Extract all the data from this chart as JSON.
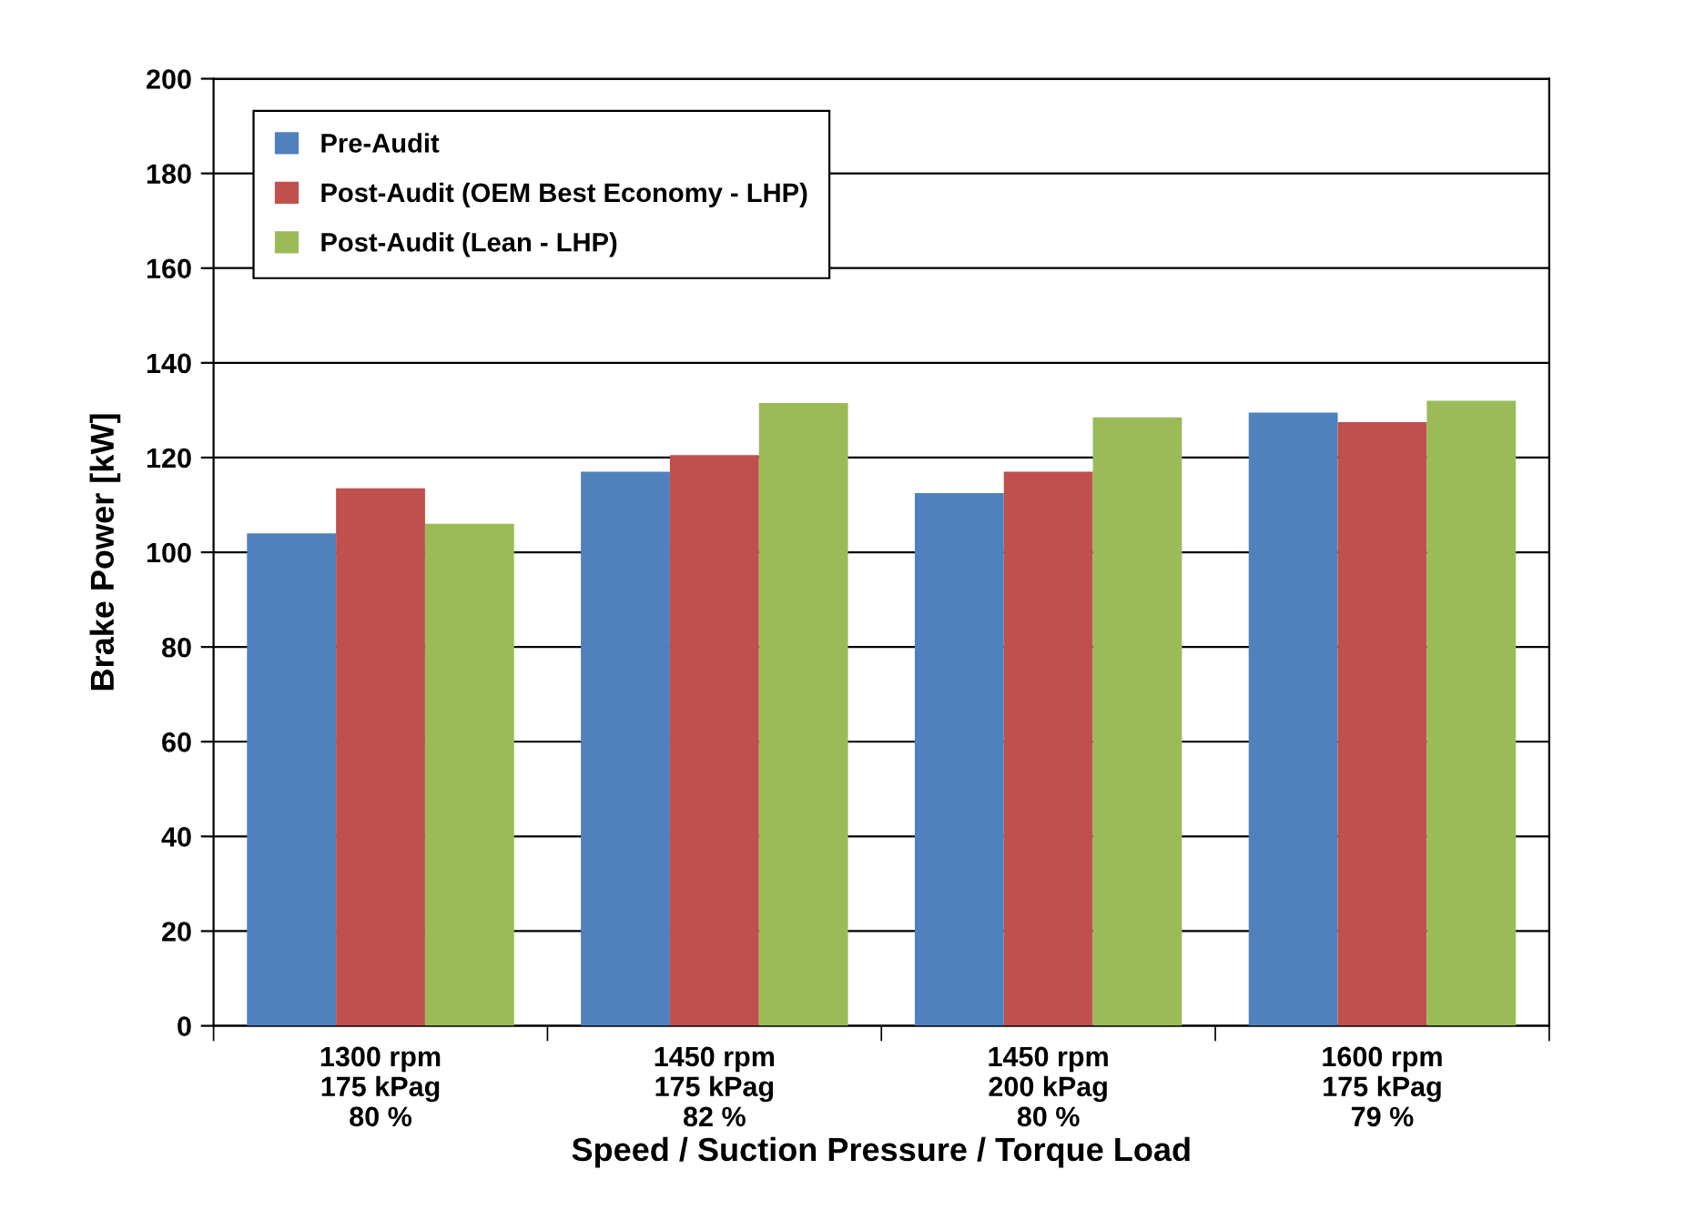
{
  "chart_data": {
    "type": "bar",
    "xlabel": "Speed / Suction Pressure / Torque Load",
    "ylabel": "Brake Power [kW]",
    "categories": [
      "1300 rpm\n175 kPag\n80 %",
      "1450 rpm\n175 kPag\n82 %",
      "1450 rpm\n200 kPag\n80 %",
      "1600 rpm\n175 kPag\n79 %"
    ],
    "series": [
      {
        "name": "Pre-Audit",
        "color": "#4f81bd",
        "values": [
          104,
          117,
          112.5,
          129.5
        ]
      },
      {
        "name": "Post-Audit (OEM Best Economy - LHP)",
        "color": "#c0504d",
        "values": [
          113.5,
          120.5,
          117,
          127.5
        ]
      },
      {
        "name": "Post-Audit (Lean - LHP)",
        "color": "#9bbb59",
        "values": [
          106,
          131.5,
          128.5,
          132
        ]
      }
    ],
    "ylim": [
      0,
      200
    ],
    "yticks": [
      0,
      20,
      40,
      60,
      80,
      100,
      120,
      140,
      160,
      180,
      200
    ],
    "grid": "y",
    "legend": "top left"
  }
}
